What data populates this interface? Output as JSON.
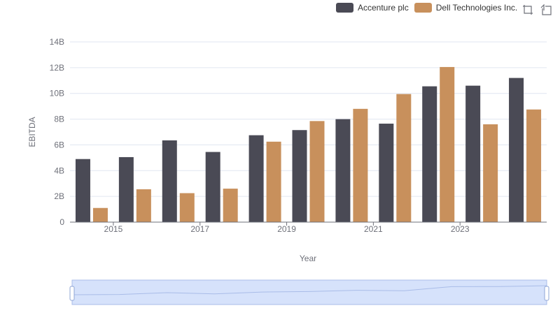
{
  "chart_data": {
    "type": "bar",
    "categories": [
      "2014",
      "2015",
      "2016",
      "2017",
      "2018",
      "2019",
      "2020",
      "2021",
      "2022",
      "2023",
      "2024"
    ],
    "x_tick_labels": [
      "2015",
      "2017",
      "2019",
      "2021",
      "2023"
    ],
    "series": [
      {
        "name": "Accenture plc",
        "color": "#4a4a55",
        "values": [
          4.9,
          5.05,
          6.35,
          5.45,
          6.75,
          7.15,
          8.0,
          7.65,
          10.55,
          10.6,
          11.2
        ]
      },
      {
        "name": "Dell Technologies Inc.",
        "color": "#c8905c",
        "values": [
          1.1,
          2.55,
          2.25,
          2.6,
          6.25,
          7.85,
          8.8,
          9.95,
          12.05,
          7.6,
          8.75
        ]
      }
    ],
    "ylabel": "EBITDA",
    "xlabel": "Year",
    "ylim": [
      0,
      14
    ],
    "y_tick_labels": [
      "0",
      "2B",
      "4B",
      "6B",
      "8B",
      "10B",
      "12B",
      "14B"
    ],
    "grid": true,
    "legend_position": "top-right"
  },
  "toolbox": {
    "icons": [
      "zoom-icon",
      "restore-icon"
    ]
  },
  "colors": {
    "axis": "#6e7079",
    "grid": "#e0e6f1",
    "slider_fill": "#d6e2fb",
    "slider_border": "#a9bce8"
  }
}
